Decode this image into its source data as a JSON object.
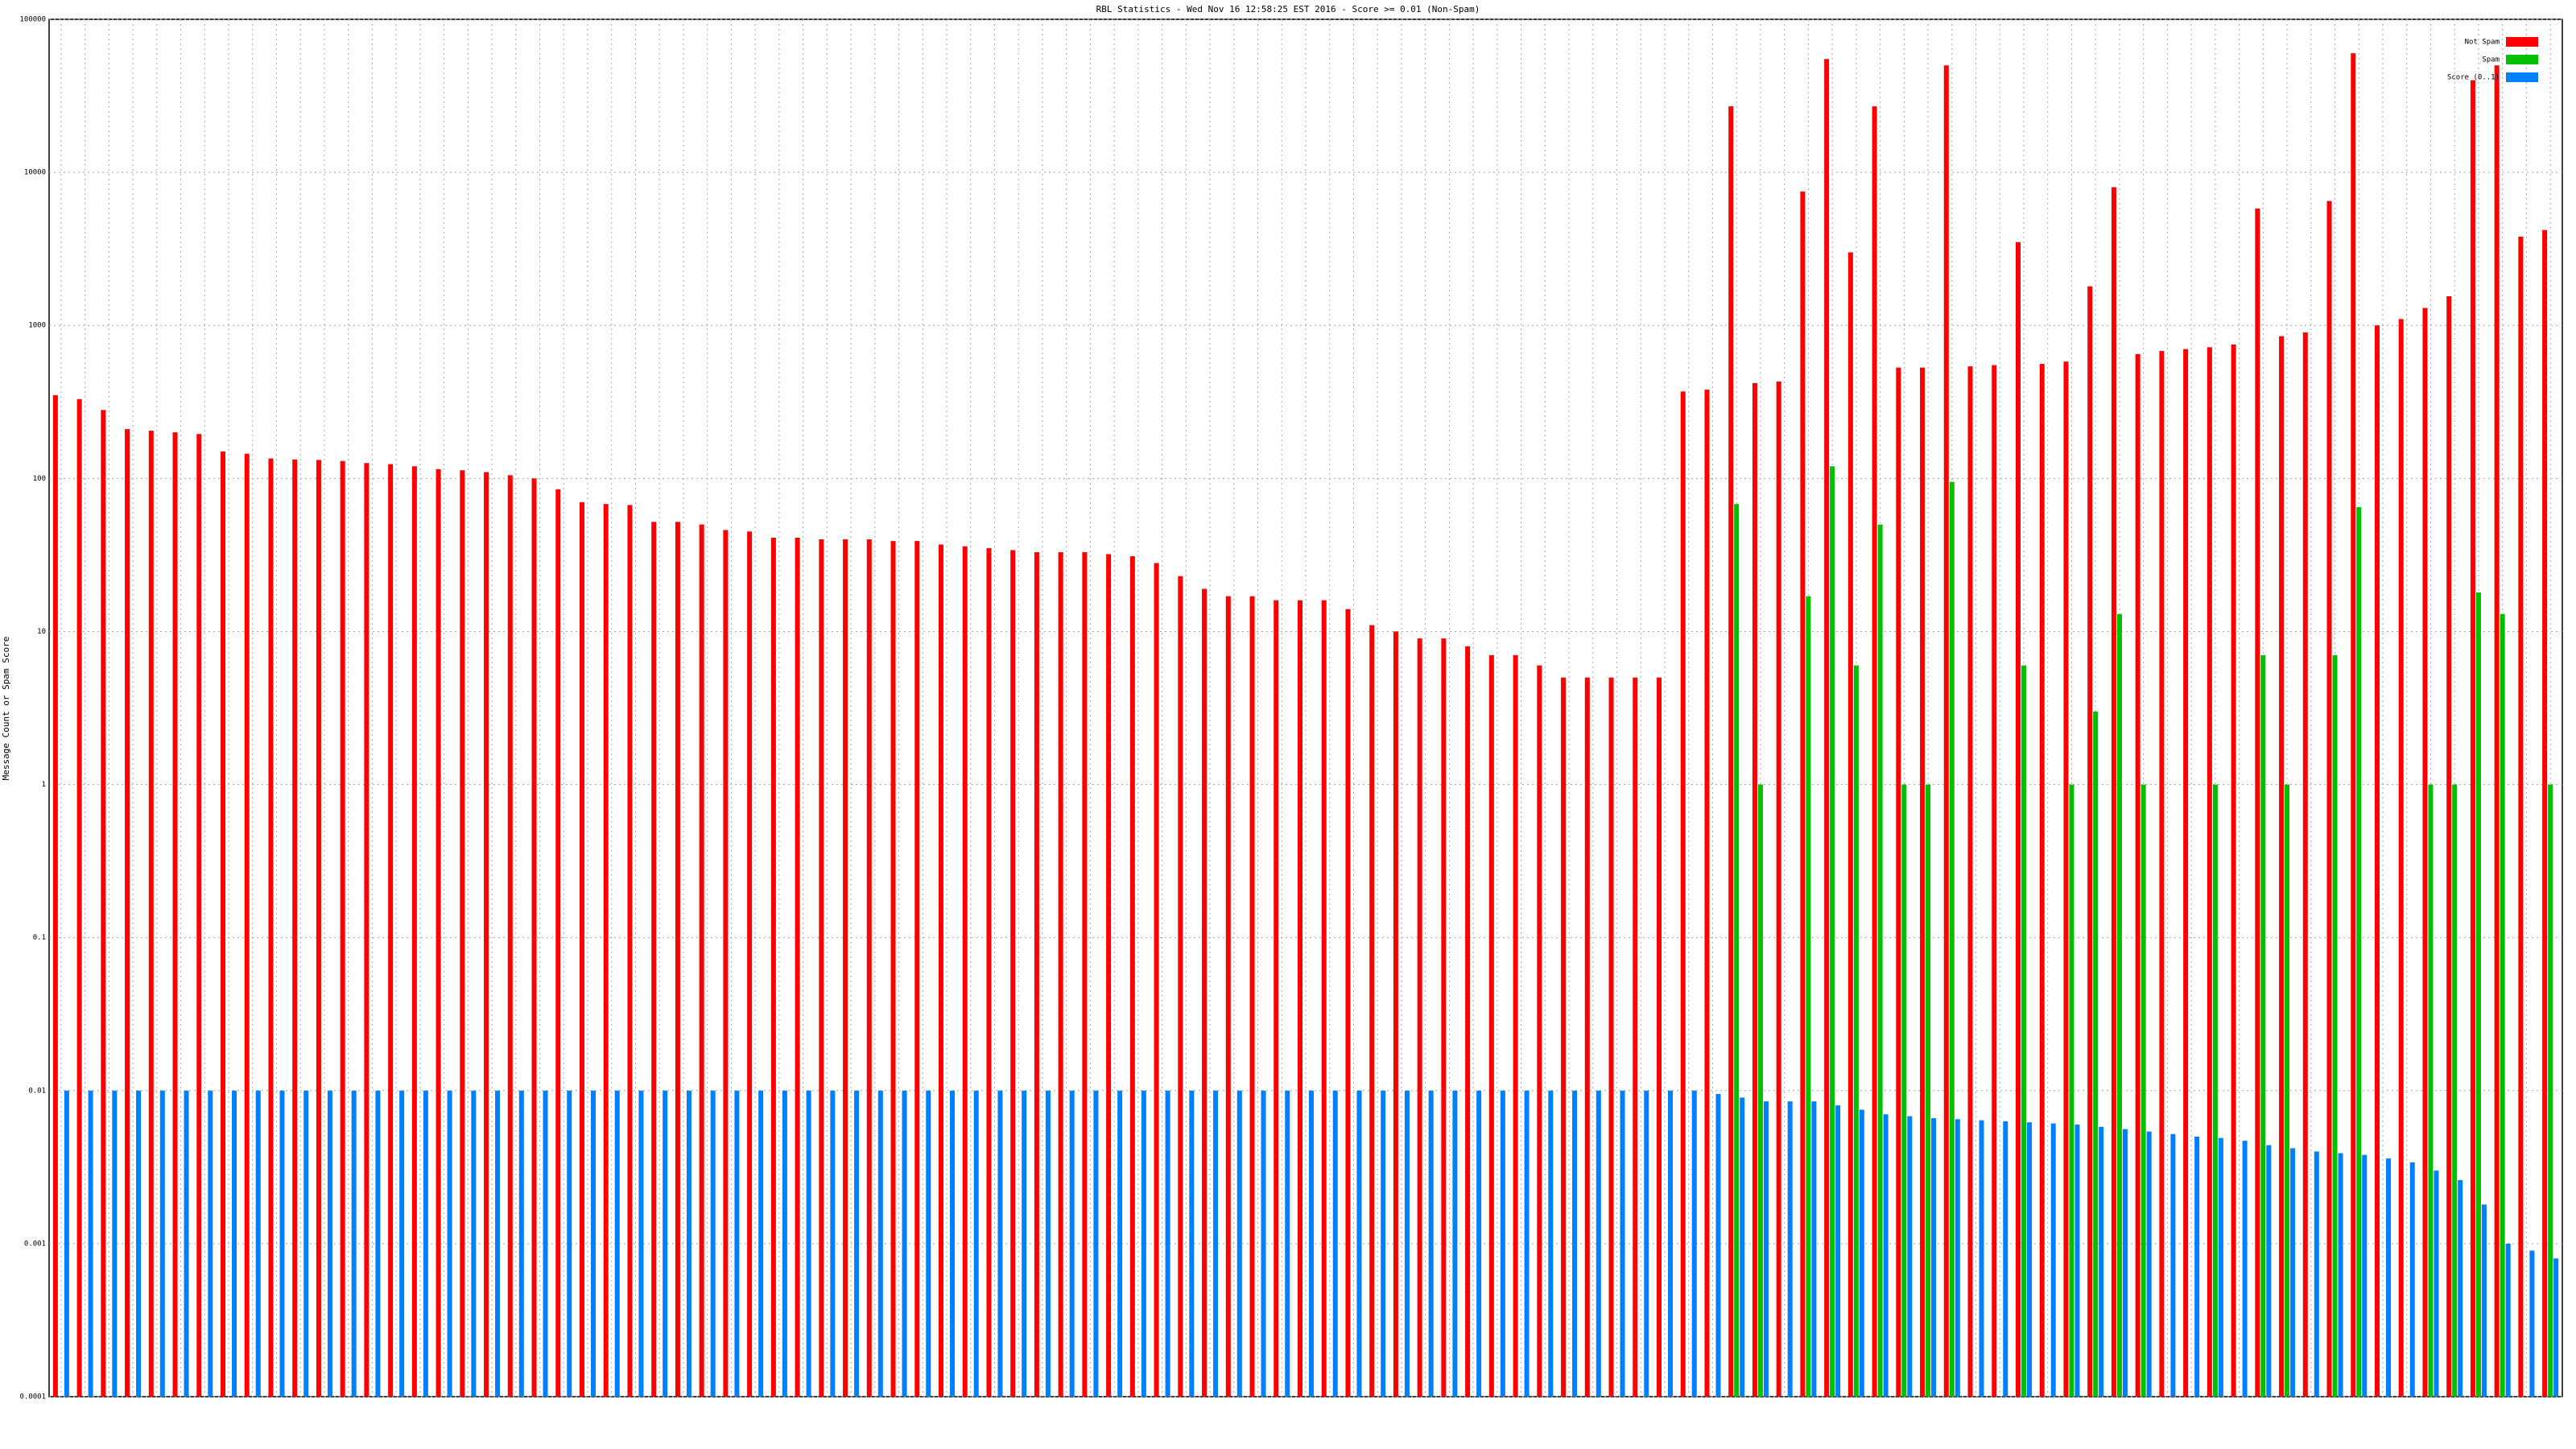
{
  "chart_data": {
    "type": "bar",
    "title": "RBL Statistics - Wed Nov 16 12:58:25 EST 2016 - Score >= 0.01 (Non-Spam)",
    "y_label": "Message Count or Spam Score",
    "log_scale": true,
    "grid": true,
    "legend": "top-right",
    "ylim": [
      0.0001,
      100000
    ],
    "yticks": [
      0.0001,
      0.001,
      0.01,
      0.1,
      1,
      10,
      100,
      1000,
      10000,
      100000
    ],
    "categories": [
      null,
      null,
      null,
      null,
      null,
      null,
      null,
      null,
      null,
      null,
      null,
      null,
      null,
      null,
      null,
      null,
      null,
      null,
      null,
      null,
      null,
      null,
      null,
      null,
      null,
      null,
      null,
      null,
      null,
      null,
      null,
      null,
      null,
      null,
      null,
      null,
      null,
      null,
      null,
      null,
      null,
      null,
      null,
      null,
      null,
      null,
      null,
      null,
      null,
      null,
      null,
      null,
      null,
      null,
      null,
      null,
      null,
      null,
      null,
      null,
      null,
      null,
      null,
      null,
      null,
      null,
      null,
      null,
      null,
      null,
      null,
      null,
      null,
      null,
      null,
      null,
      null,
      null,
      null,
      null,
      null,
      null,
      null,
      null,
      null,
      null,
      null,
      null,
      null,
      null,
      null,
      null,
      null,
      null,
      null,
      null,
      null,
      null,
      null,
      null,
      null,
      null,
      null,
      null,
      null
    ],
    "series": [
      {
        "name": "Not Spam",
        "color": "#ff0000",
        "values": [
          350,
          330,
          280,
          210,
          205,
          200,
          195,
          150,
          145,
          135,
          133,
          132,
          130,
          126,
          124,
          120,
          115,
          113,
          110,
          105,
          100,
          85,
          70,
          68,
          67,
          52,
          52,
          50,
          46,
          45,
          41,
          41,
          40,
          40,
          40,
          39,
          39,
          37,
          36,
          35,
          34,
          33,
          33,
          33,
          32,
          31,
          28,
          23,
          19,
          17,
          17,
          16,
          16,
          16,
          14,
          11,
          10,
          9,
          9,
          8,
          7,
          7,
          6,
          5,
          5,
          5,
          5,
          5,
          370,
          380,
          27000,
          420,
          430,
          7500,
          55000,
          3000,
          27000,
          530,
          530,
          50000,
          540,
          550,
          3500,
          560,
          580,
          1800,
          8000,
          650,
          680,
          700,
          720,
          750,
          5800,
          850,
          900,
          6500,
          60000,
          1000,
          1100,
          1300,
          1550,
          40000,
          50000,
          3800,
          4200
        ]
      },
      {
        "name": "Spam",
        "color": "#00c000",
        "values": [
          null,
          null,
          null,
          null,
          null,
          null,
          null,
          null,
          null,
          null,
          null,
          null,
          null,
          null,
          null,
          null,
          null,
          null,
          null,
          null,
          null,
          null,
          null,
          null,
          null,
          null,
          null,
          null,
          null,
          null,
          null,
          null,
          null,
          null,
          null,
          null,
          null,
          null,
          null,
          null,
          null,
          null,
          null,
          null,
          null,
          null,
          null,
          null,
          null,
          null,
          null,
          null,
          null,
          null,
          null,
          null,
          null,
          null,
          null,
          null,
          null,
          null,
          null,
          null,
          null,
          null,
          null,
          null,
          null,
          null,
          68,
          1,
          null,
          17,
          120,
          6,
          50,
          1,
          1,
          95,
          null,
          null,
          6,
          null,
          1,
          3,
          13,
          1,
          null,
          null,
          1,
          null,
          7,
          1,
          null,
          7,
          65,
          null,
          null,
          1,
          1,
          18,
          13,
          null,
          1
        ]
      },
      {
        "name": "Score (0..1)",
        "color": "#0080ff",
        "values": [
          0.01,
          0.01,
          0.01,
          0.01,
          0.01,
          0.01,
          0.01,
          0.01,
          0.01,
          0.01,
          0.01,
          0.01,
          0.01,
          0.01,
          0.01,
          0.01,
          0.01,
          0.01,
          0.01,
          0.01,
          0.01,
          0.01,
          0.01,
          0.01,
          0.01,
          0.01,
          0.01,
          0.01,
          0.01,
          0.01,
          0.01,
          0.01,
          0.01,
          0.01,
          0.01,
          0.01,
          0.01,
          0.01,
          0.01,
          0.01,
          0.01,
          0.01,
          0.01,
          0.01,
          0.01,
          0.01,
          0.01,
          0.01,
          0.01,
          0.01,
          0.01,
          0.01,
          0.01,
          0.01,
          0.01,
          0.01,
          0.01,
          0.01,
          0.01,
          0.01,
          0.01,
          0.01,
          0.01,
          0.01,
          0.01,
          0.01,
          0.01,
          0.01,
          0.01,
          0.0095,
          0.009,
          0.0085,
          0.0085,
          0.0085,
          0.008,
          0.0075,
          0.007,
          0.0068,
          0.0066,
          0.0065,
          0.0064,
          0.0063,
          0.0062,
          0.0061,
          0.006,
          0.0058,
          0.0056,
          0.0054,
          0.0052,
          0.005,
          0.0049,
          0.0047,
          0.0044,
          0.0042,
          0.004,
          0.0039,
          0.0038,
          0.0036,
          0.0034,
          0.003,
          0.0026,
          0.0018,
          0.001,
          0.0009,
          0.0008
        ]
      }
    ]
  }
}
